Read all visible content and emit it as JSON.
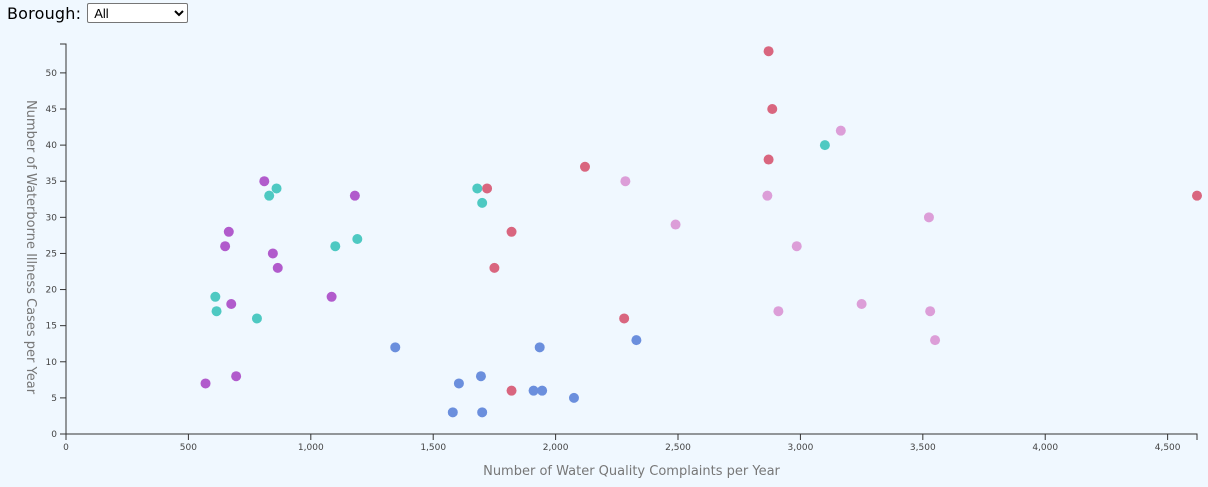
{
  "filter": {
    "label": "Borough:",
    "selected": "All",
    "options": [
      "All"
    ]
  },
  "chart_data": {
    "type": "scatter",
    "xlabel": "Number of Water Quality Complaints per Year",
    "ylabel": "Number of Waterborne Illness Cases per Year",
    "xlim": [
      0,
      4620
    ],
    "ylim": [
      0,
      54
    ],
    "xticks": [
      0,
      500,
      1000,
      1500,
      2000,
      2500,
      3000,
      3500,
      4000,
      4500
    ],
    "yticks": [
      0,
      5,
      10,
      15,
      20,
      25,
      30,
      35,
      40,
      45,
      50
    ],
    "xtick_labels": [
      "0",
      "500",
      "1,000",
      "1,500",
      "2,000",
      "2,500",
      "3,000",
      "3,500",
      "4,000",
      "4,500"
    ],
    "ytick_labels": [
      "0",
      "5",
      "10",
      "15",
      "20",
      "25",
      "30",
      "35",
      "40",
      "45",
      "50"
    ],
    "grid": false,
    "series": [
      {
        "color": "#d9667f",
        "points": [
          [
            2870,
            53
          ],
          [
            2885,
            45
          ],
          [
            2870,
            38
          ],
          [
            2120,
            37
          ],
          [
            1720,
            34
          ],
          [
            1820,
            28
          ],
          [
            1750,
            23
          ],
          [
            2280,
            16
          ],
          [
            1820,
            6
          ],
          [
            4620,
            33
          ]
        ]
      },
      {
        "color": "#4ec9c2",
        "points": [
          [
            3100,
            40
          ],
          [
            1680,
            34
          ],
          [
            1700,
            32
          ],
          [
            860,
            34
          ],
          [
            830,
            33
          ],
          [
            1100,
            26
          ],
          [
            1190,
            27
          ],
          [
            610,
            19
          ],
          [
            615,
            17
          ],
          [
            780,
            16
          ]
        ]
      },
      {
        "color": "#b15bcc",
        "points": [
          [
            810,
            35
          ],
          [
            1180,
            33
          ],
          [
            665,
            28
          ],
          [
            650,
            26
          ],
          [
            845,
            25
          ],
          [
            865,
            23
          ],
          [
            1085,
            19
          ],
          [
            675,
            18
          ],
          [
            570,
            7
          ],
          [
            695,
            8
          ]
        ]
      },
      {
        "color": "#dc9ed8",
        "points": [
          [
            3165,
            42
          ],
          [
            2285,
            35
          ],
          [
            2865,
            33
          ],
          [
            2490,
            29
          ],
          [
            2985,
            26
          ],
          [
            3525,
            30
          ],
          [
            2910,
            17
          ],
          [
            3250,
            18
          ],
          [
            3530,
            17
          ],
          [
            3550,
            13
          ]
        ]
      },
      {
        "color": "#6b8fdd",
        "points": [
          [
            1345,
            12
          ],
          [
            1935,
            12
          ],
          [
            2330,
            13
          ],
          [
            1605,
            7
          ],
          [
            1695,
            8
          ],
          [
            1580,
            3
          ],
          [
            1700,
            3
          ],
          [
            1910,
            6
          ],
          [
            1945,
            6
          ],
          [
            2075,
            5
          ]
        ]
      }
    ]
  }
}
